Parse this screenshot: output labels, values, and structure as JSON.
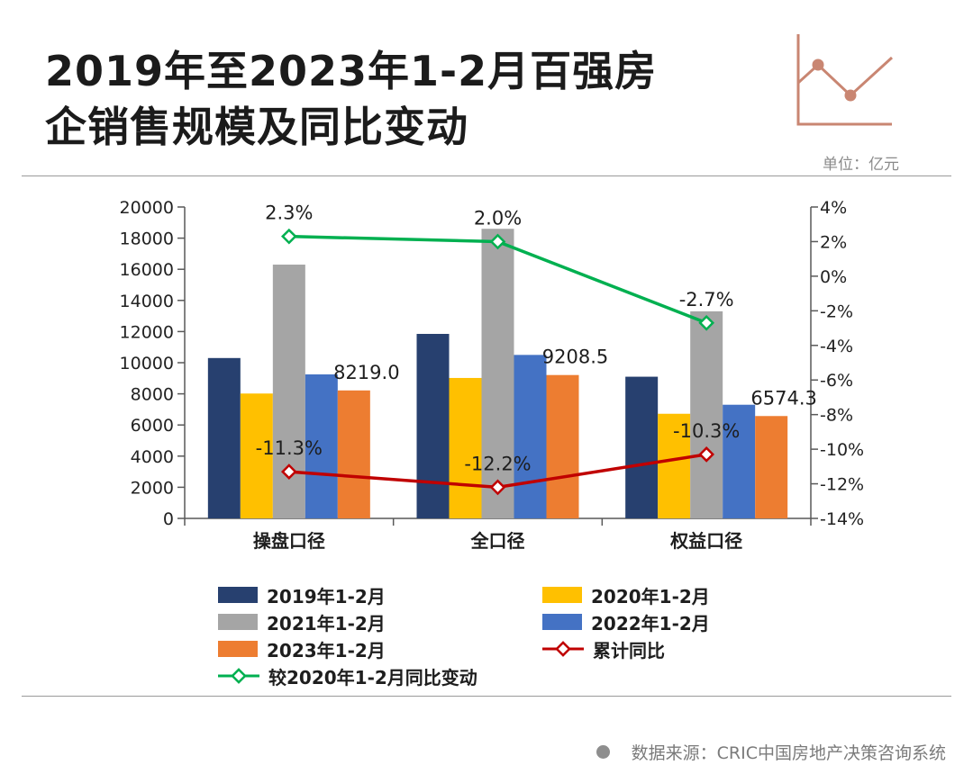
{
  "title": {
    "line1": "2019年至2023年1-2月百强房",
    "line2": "企销售规模及同比变动"
  },
  "unit": "单位：亿元",
  "source": "数据来源：CRIC中国房地产决策咨询系统",
  "colors": {
    "s2019": "#27406f",
    "s2020": "#ffc000",
    "s2021": "#a5a5a5",
    "s2022": "#4472c4",
    "s2023": "#ed7d31",
    "yoy": "#c00000",
    "vs2020": "#00b050",
    "deco": "#c98672"
  },
  "chart_data": {
    "type": "bar",
    "categories": [
      "操盘口径",
      "全口径",
      "权益口径"
    ],
    "series": [
      {
        "name": "2019年1-2月",
        "values": [
          10300,
          11850,
          9100
        ]
      },
      {
        "name": "2020年1-2月",
        "values": [
          8020,
          9020,
          6720
        ]
      },
      {
        "name": "2021年1-2月",
        "values": [
          16300,
          18600,
          13300
        ]
      },
      {
        "name": "2022年1-2月",
        "values": [
          9250,
          10500,
          7300
        ]
      },
      {
        "name": "2023年1-2月",
        "values": [
          8219.0,
          9208.5,
          6574.3
        ]
      }
    ],
    "bar_labels": [
      "8219.0",
      "9208.5",
      "6574.3"
    ],
    "lines": [
      {
        "name": "累计同比",
        "values": [
          -11.3,
          -12.2,
          -10.3
        ],
        "labels": [
          "-11.3%",
          "-12.2%",
          "-10.3%"
        ]
      },
      {
        "name": "较2020年1-2月同比变动",
        "values": [
          2.3,
          2.0,
          -2.7
        ],
        "labels": [
          "2.3%",
          "2.0%",
          "-2.7%"
        ]
      }
    ],
    "y_left": {
      "min": 0,
      "max": 20000,
      "step": 2000,
      "ticks": [
        "0",
        "2000",
        "4000",
        "6000",
        "8000",
        "10000",
        "12000",
        "14000",
        "16000",
        "18000",
        "20000"
      ]
    },
    "y_right": {
      "min": -14,
      "max": 4,
      "step": 2,
      "ticks": [
        "-14%",
        "-12%",
        "-10%",
        "-8%",
        "-6%",
        "-4%",
        "-2%",
        "0%",
        "2%",
        "4%"
      ]
    }
  }
}
